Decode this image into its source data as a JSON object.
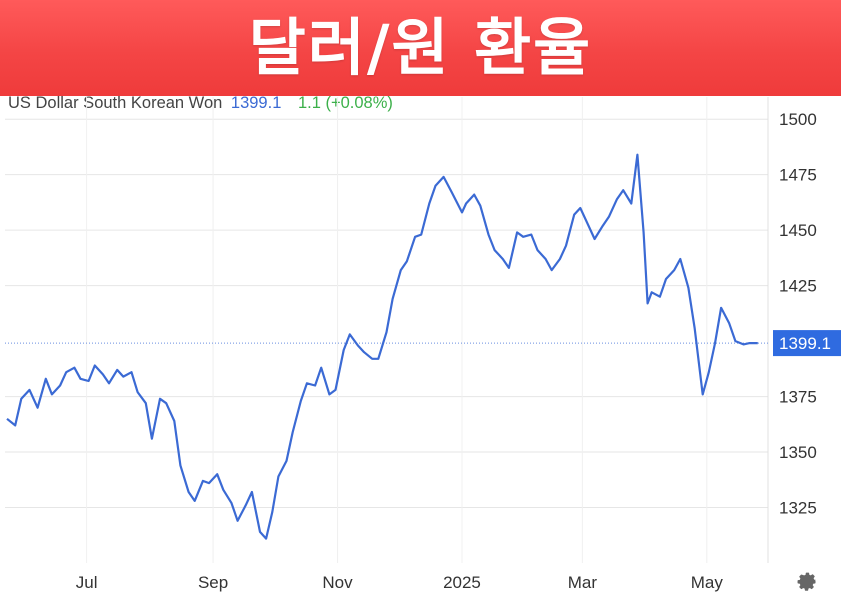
{
  "banner": {
    "title": "달러/원 환율"
  },
  "legend": {
    "series_name": "US Dollar South Korean Won",
    "last_price": "1399.1",
    "change": "1.1 (+0.08%)"
  },
  "colors": {
    "banner": "#f44545",
    "line": "#3b6ad4",
    "price_tag": "#2f6be0",
    "change_positive": "#3cb04a",
    "grid": "#e6e6e6"
  },
  "icons": {
    "settings": "gear-icon"
  },
  "chart_data": {
    "type": "line",
    "title": "",
    "xlabel": "",
    "ylabel": "",
    "ylim": [
      1300,
      1510
    ],
    "yticks": [
      1325,
      1350,
      1375,
      1425,
      1450,
      1475,
      1500
    ],
    "last_value_label": "1399.1",
    "x_tick_labels": [
      "Jul",
      "Sep",
      "Nov",
      "2025",
      "Mar",
      "May"
    ],
    "x_ticks": [
      "2024-07-01",
      "2024-09-01",
      "2024-11-01",
      "2025-01-01",
      "2025-03-01",
      "2025-05-01"
    ],
    "x_range": [
      "2024-05-22",
      "2025-05-31"
    ],
    "grid": true,
    "series": [
      {
        "name": "US Dollar South Korean Won",
        "x": [
          "2024-05-23",
          "2024-05-27",
          "2024-05-30",
          "2024-06-03",
          "2024-06-07",
          "2024-06-11",
          "2024-06-14",
          "2024-06-18",
          "2024-06-21",
          "2024-06-25",
          "2024-06-28",
          "2024-07-02",
          "2024-07-05",
          "2024-07-09",
          "2024-07-12",
          "2024-07-16",
          "2024-07-19",
          "2024-07-23",
          "2024-07-26",
          "2024-07-30",
          "2024-08-02",
          "2024-08-06",
          "2024-08-09",
          "2024-08-13",
          "2024-08-16",
          "2024-08-20",
          "2024-08-23",
          "2024-08-27",
          "2024-08-30",
          "2024-09-03",
          "2024-09-06",
          "2024-09-10",
          "2024-09-13",
          "2024-09-17",
          "2024-09-20",
          "2024-09-24",
          "2024-09-27",
          "2024-09-30",
          "2024-10-03",
          "2024-10-07",
          "2024-10-10",
          "2024-10-14",
          "2024-10-17",
          "2024-10-21",
          "2024-10-24",
          "2024-10-28",
          "2024-10-31",
          "2024-11-04",
          "2024-11-07",
          "2024-11-11",
          "2024-11-14",
          "2024-11-18",
          "2024-11-21",
          "2024-11-25",
          "2024-11-28",
          "2024-12-02",
          "2024-12-05",
          "2024-12-09",
          "2024-12-12",
          "2024-12-16",
          "2024-12-19",
          "2024-12-23",
          "2024-12-27",
          "2025-01-01",
          "2025-01-03",
          "2025-01-07",
          "2025-01-10",
          "2025-01-14",
          "2025-01-17",
          "2025-01-21",
          "2025-01-24",
          "2025-01-28",
          "2025-01-31",
          "2025-02-04",
          "2025-02-07",
          "2025-02-11",
          "2025-02-14",
          "2025-02-18",
          "2025-02-21",
          "2025-02-25",
          "2025-02-28",
          "2025-03-04",
          "2025-03-07",
          "2025-03-11",
          "2025-03-14",
          "2025-03-18",
          "2025-03-21",
          "2025-03-25",
          "2025-03-28",
          "2025-03-31",
          "2025-04-02",
          "2025-04-04",
          "2025-04-08",
          "2025-04-11",
          "2025-04-15",
          "2025-04-18",
          "2025-04-22",
          "2025-04-25",
          "2025-04-29",
          "2025-05-02",
          "2025-05-05",
          "2025-05-08",
          "2025-05-12",
          "2025-05-15",
          "2025-05-19",
          "2025-05-22",
          "2025-05-26"
        ],
        "values": [
          1365,
          1362,
          1374,
          1378,
          1370,
          1383,
          1376,
          1380,
          1386,
          1388,
          1383,
          1382,
          1389,
          1385,
          1381,
          1387,
          1384,
          1386,
          1377,
          1372,
          1356,
          1374,
          1372,
          1364,
          1344,
          1332,
          1328,
          1337,
          1336,
          1340,
          1333,
          1327,
          1319,
          1326,
          1332,
          1314,
          1311,
          1323,
          1339,
          1346,
          1359,
          1373,
          1381,
          1380,
          1388,
          1376,
          1378,
          1396,
          1403,
          1398,
          1395,
          1392,
          1392,
          1404,
          1419,
          1432,
          1436,
          1447,
          1448,
          1462,
          1470,
          1474,
          1467,
          1458,
          1462,
          1466,
          1461,
          1448,
          1441,
          1437,
          1433,
          1449,
          1447,
          1448,
          1441,
          1437,
          1432,
          1437,
          1443,
          1457,
          1460,
          1452,
          1446,
          1452,
          1456,
          1464,
          1468,
          1462,
          1484,
          1449,
          1417,
          1422,
          1420,
          1428,
          1432,
          1437,
          1424,
          1406,
          1376,
          1386,
          1399,
          1415,
          1408,
          1400,
          1398.5,
          1399.1,
          1399.1
        ]
      }
    ]
  }
}
